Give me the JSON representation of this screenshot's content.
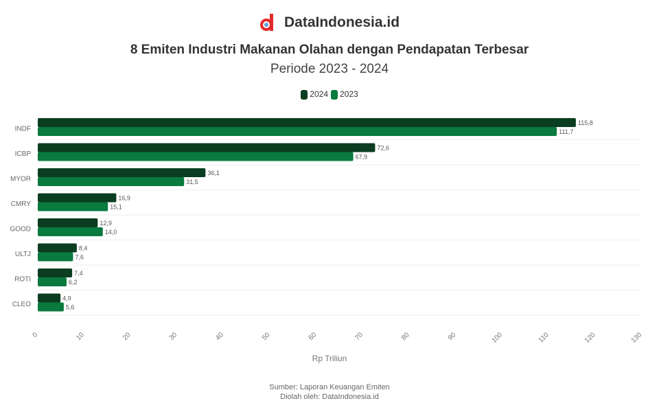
{
  "brand": {
    "name": "DataIndonesia.id"
  },
  "colors": {
    "y2024": "#0b3d20",
    "y2023": "#0a7a3f",
    "grid": "#eeeeee"
  },
  "chart_data": {
    "type": "bar",
    "orientation": "horizontal",
    "title": "8 Emiten Industri Makanan Olahan dengan Pendapatan Terbesar",
    "subtitle": "Periode 2023 - 2024",
    "categories": [
      "INDF",
      "ICBP",
      "MYOR",
      "CMRY",
      "GOOD",
      "ULTJ",
      "ROTI",
      "CLEO"
    ],
    "series": [
      {
        "name": "2024",
        "values": [
          115.8,
          72.6,
          36.1,
          16.9,
          12.9,
          8.4,
          7.4,
          4.9
        ]
      },
      {
        "name": "2023",
        "values": [
          111.7,
          67.9,
          31.5,
          15.1,
          14.0,
          7.6,
          6.2,
          5.6
        ]
      }
    ],
    "data_labels_2024": [
      "115,8",
      "72,6",
      "36,1",
      "16,9",
      "12,9",
      "8,4",
      "7,4",
      "4,9"
    ],
    "data_labels_2023": [
      "111,7",
      "67,9",
      "31,5",
      "15,1",
      "14,0",
      "7,6",
      "6,2",
      "5,6"
    ],
    "xlim": [
      0,
      130
    ],
    "xticks": [
      "0",
      "10",
      "20",
      "30",
      "40",
      "50",
      "60",
      "70",
      "80",
      "90",
      "100",
      "110",
      "120",
      "130"
    ],
    "xlabel": "Rp Triliun",
    "legend_position": "top-center",
    "grid": true,
    "source_lines": [
      "Sumber: Laporan Keuangan Emiten",
      "Diolah oleh: DataIndonesia.id"
    ]
  }
}
